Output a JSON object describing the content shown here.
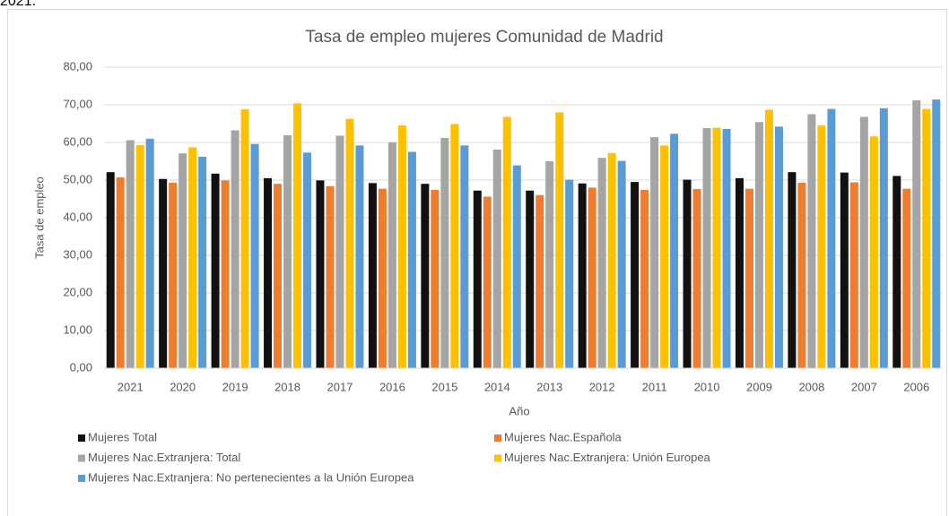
{
  "header_text": "2021.",
  "chart_data": {
    "type": "bar",
    "title": "Tasa de empleo mujeres Comunidad de Madrid",
    "x_label": "Año",
    "y_label": "Tasa de empleo",
    "categories": [
      "2021",
      "2020",
      "2019",
      "2018",
      "2017",
      "2016",
      "2015",
      "2014",
      "2013",
      "2012",
      "2011",
      "2010",
      "2009",
      "2008",
      "2007",
      "2006"
    ],
    "series": [
      {
        "name": "Mujeres Total",
        "color": "#111111",
        "values": [
          52.1,
          50.3,
          51.7,
          50.5,
          49.9,
          49.2,
          49.0,
          47.2,
          47.2,
          49.1,
          49.5,
          50.1,
          50.5,
          52.1,
          52.0,
          51.1
        ]
      },
      {
        "name": "Mujeres Nac.Española",
        "color": "#ED7D31",
        "values": [
          50.7,
          49.3,
          49.9,
          49.0,
          48.4,
          47.7,
          47.4,
          45.6,
          46.0,
          48.0,
          47.4,
          47.6,
          47.7,
          49.3,
          49.4,
          47.7
        ]
      },
      {
        "name": "Mujeres Nac.Extranjera: Total",
        "color": "#A5A5A5",
        "values": [
          60.6,
          57.1,
          63.2,
          61.9,
          61.8,
          60.0,
          61.2,
          58.1,
          55.0,
          55.9,
          61.4,
          63.8,
          65.4,
          67.5,
          66.8,
          71.2
        ]
      },
      {
        "name": "Mujeres Nac.Extranjera: Unión Europea",
        "color": "#FFC000",
        "values": [
          59.3,
          58.7,
          68.8,
          70.4,
          66.3,
          64.5,
          64.9,
          66.8,
          68.0,
          57.2,
          59.2,
          63.9,
          68.7,
          64.5,
          61.6,
          68.9
        ]
      },
      {
        "name": "Mujeres Nac.Extranjera: No pertenecientes a la Unión Europea",
        "color": "#5B9BD5",
        "values": [
          61.0,
          56.2,
          59.6,
          57.3,
          59.2,
          57.5,
          59.2,
          53.9,
          50.1,
          55.1,
          62.3,
          63.6,
          64.2,
          68.9,
          69.1,
          71.4
        ]
      }
    ],
    "ylim": [
      0,
      80
    ],
    "yticks": [
      {
        "value": 0,
        "label": "0,00"
      },
      {
        "value": 10,
        "label": "10,00"
      },
      {
        "value": 20,
        "label": "20,00"
      },
      {
        "value": 30,
        "label": "30,00"
      },
      {
        "value": 40,
        "label": "40,00"
      },
      {
        "value": 50,
        "label": "50,00"
      },
      {
        "value": 60,
        "label": "60,00"
      },
      {
        "value": 70,
        "label": "70,00"
      },
      {
        "value": 80,
        "label": "80,00"
      }
    ],
    "grid": true,
    "legend": "bottom"
  }
}
